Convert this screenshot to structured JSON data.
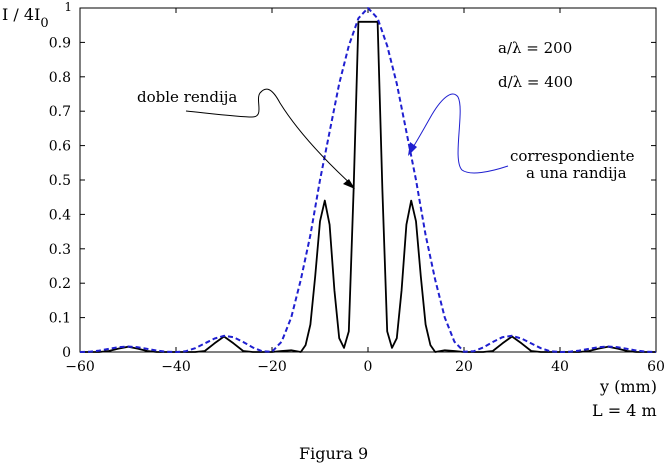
{
  "chart_data": {
    "type": "line",
    "ylabel": "I / 4I",
    "ylabel_sub": "0",
    "xlabel": "y (mm)",
    "note": "L = 4 m",
    "caption": "Figura 9",
    "xlim": [
      -60,
      60
    ],
    "ylim": [
      0,
      1
    ],
    "grid": false,
    "x_ticks": [
      -60,
      -40,
      -20,
      0,
      20,
      40,
      60
    ],
    "x_tick_labels": [
      "−60",
      "−40",
      "−20",
      "0",
      "20",
      "40",
      "60"
    ],
    "y_ticks": [
      0,
      0.1,
      0.2,
      0.3,
      0.4,
      0.5,
      0.6,
      0.7,
      0.8,
      0.9,
      1
    ],
    "y_tick_labels": [
      "0",
      "0.1",
      "0.2",
      "0.3",
      "0.4",
      "0.5",
      "0.6",
      "0.7",
      "0.8",
      "0.9",
      "1"
    ],
    "params": [
      "a/λ = 200",
      "d/λ = 400"
    ],
    "series": [
      {
        "name": "doble rendija",
        "color": "#000000",
        "style": "solid",
        "x": [
          -60,
          -56,
          -54,
          -52,
          -50,
          -48,
          -46,
          -44,
          -42,
          -40,
          -38,
          -36,
          -34,
          -32,
          -30,
          -28,
          -26,
          -24,
          -22,
          -20,
          -18,
          -16,
          -14,
          -13,
          -12,
          -11,
          -10,
          -9,
          -8,
          -7,
          -6,
          -5,
          -4,
          -3,
          -2,
          -1,
          0,
          1,
          2,
          3,
          4,
          5,
          6,
          7,
          8,
          9,
          10,
          11,
          12,
          13,
          14,
          16,
          18,
          20,
          22,
          24,
          26,
          28,
          30,
          32,
          34,
          36,
          38,
          40,
          42,
          44,
          46,
          48,
          50,
          52,
          54,
          56,
          60
        ],
        "y": [
          0,
          0,
          0.003,
          0.01,
          0.015,
          0.01,
          0.003,
          0,
          0,
          0,
          0,
          0,
          0.003,
          0.025,
          0.045,
          0.025,
          0.003,
          0,
          0,
          0,
          0.003,
          0.005,
          0,
          0.02,
          0.08,
          0.22,
          0.38,
          0.44,
          0.37,
          0.18,
          0.04,
          0.012,
          0.06,
          0.47,
          0.96,
          0.96,
          0.96,
          0.96,
          0.96,
          0.47,
          0.06,
          0.012,
          0.04,
          0.18,
          0.37,
          0.44,
          0.38,
          0.22,
          0.08,
          0.02,
          0,
          0.005,
          0.003,
          0,
          0,
          0,
          0.003,
          0.025,
          0.045,
          0.025,
          0.003,
          0,
          0,
          0,
          0,
          0,
          0.003,
          0.01,
          0.015,
          0.01,
          0.003,
          0,
          0
        ]
      },
      {
        "name": "correspondiente a una randija",
        "color": "#1f1fd0",
        "style": "dashed",
        "x": [
          -60,
          -58,
          -56,
          -54,
          -52,
          -50,
          -48,
          -46,
          -44,
          -42,
          -40,
          -38,
          -36,
          -34,
          -32,
          -30,
          -28,
          -26,
          -24,
          -22,
          -20,
          -18,
          -16,
          -14,
          -12,
          -10,
          -8,
          -6,
          -4,
          -2,
          0,
          2,
          4,
          6,
          8,
          10,
          12,
          14,
          16,
          18,
          20,
          22,
          24,
          26,
          28,
          30,
          32,
          34,
          36,
          38,
          40,
          42,
          44,
          46,
          48,
          50,
          52,
          54,
          56,
          58,
          60
        ],
        "y": [
          0,
          0.001,
          0.004,
          0.009,
          0.014,
          0.016,
          0.014,
          0.009,
          0.004,
          0.001,
          0,
          0.002,
          0.011,
          0.025,
          0.039,
          0.047,
          0.043,
          0.029,
          0.013,
          0.002,
          0.001,
          0.03,
          0.1,
          0.21,
          0.34,
          0.5,
          0.64,
          0.78,
          0.89,
          0.97,
          1,
          0.97,
          0.89,
          0.78,
          0.64,
          0.5,
          0.34,
          0.21,
          0.1,
          0.03,
          0.001,
          0.002,
          0.013,
          0.029,
          0.043,
          0.047,
          0.039,
          0.025,
          0.011,
          0.002,
          0,
          0.001,
          0.004,
          0.009,
          0.014,
          0.016,
          0.014,
          0.009,
          0.004,
          0.001,
          0
        ]
      }
    ],
    "annotations": [
      {
        "label": "doble rendija",
        "target_series": "doble rendija",
        "target_x": -2.5,
        "target_y": 0.47
      },
      {
        "label_lines": [
          "correspondiente",
          "a  una  randija"
        ],
        "target_series": "correspondiente a una randija",
        "target_x": 8,
        "target_y": 0.56
      }
    ]
  }
}
